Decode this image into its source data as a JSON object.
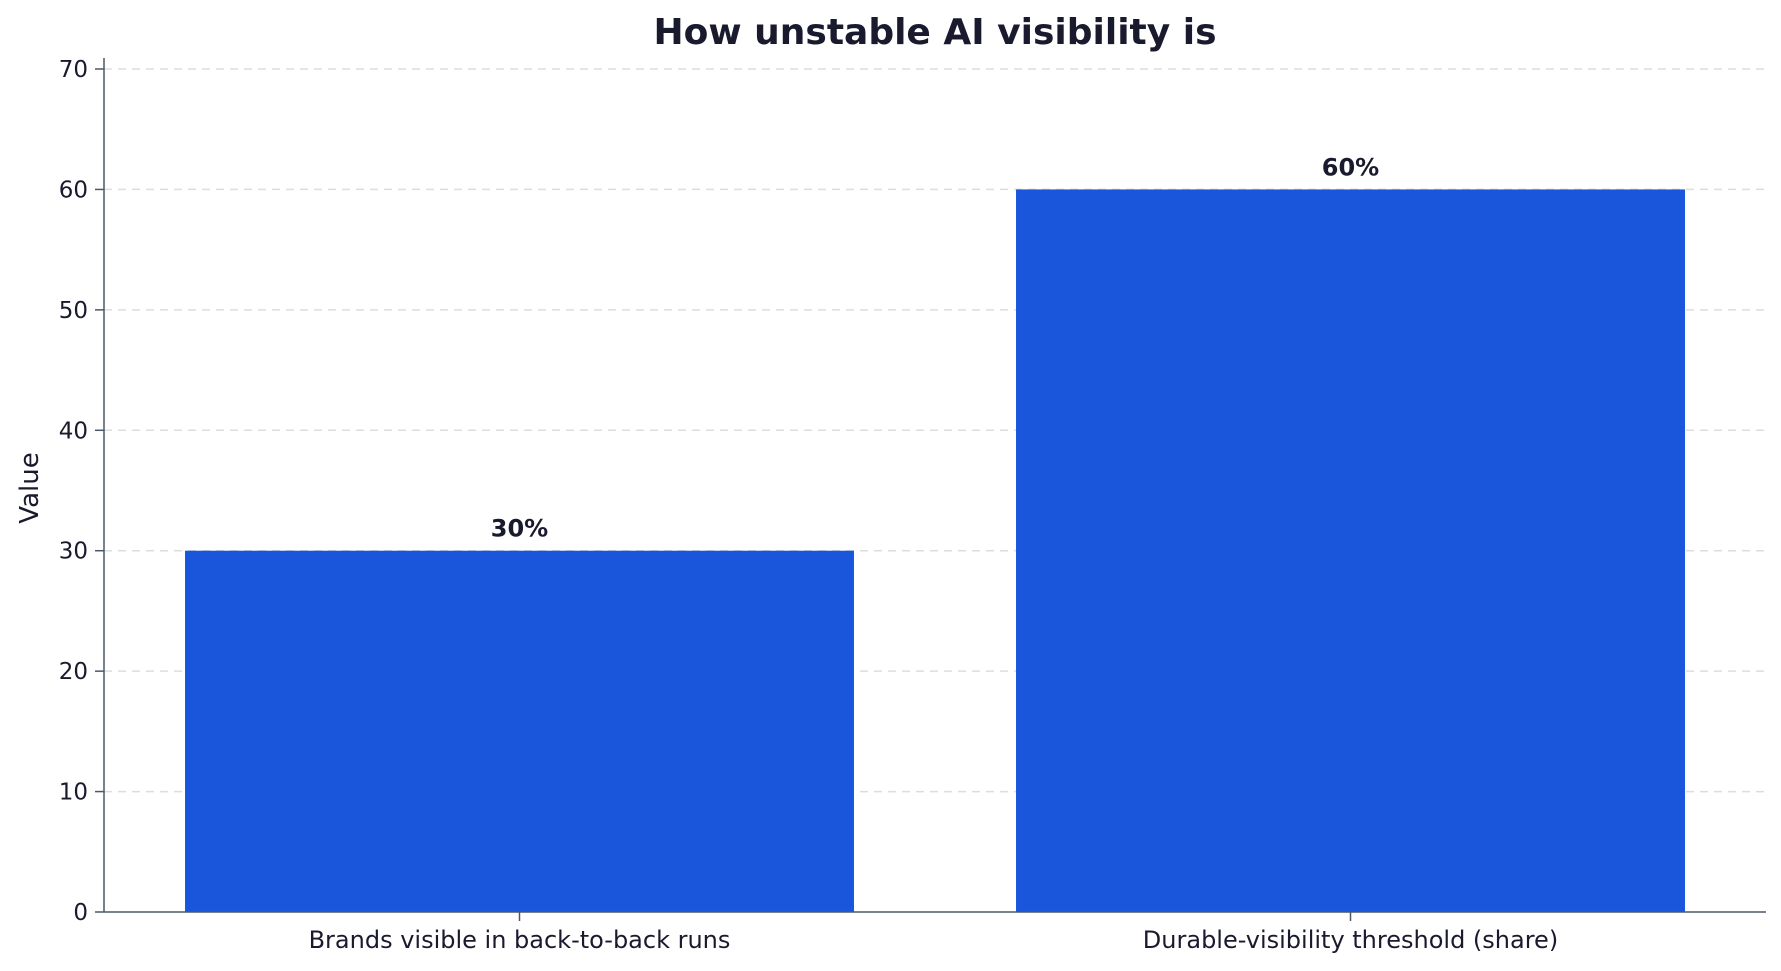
{
  "chart_data": {
    "type": "bar",
    "title": "How unstable AI visibility is",
    "xlabel": "",
    "ylabel": "Value",
    "categories": [
      "Brands visible in back-to-back runs",
      "Durable-visibility threshold (share)"
    ],
    "values": [
      30,
      60
    ],
    "data_labels": [
      "30%",
      "60%"
    ],
    "ylim": [
      0,
      70
    ],
    "yticks": [
      0,
      10,
      20,
      30,
      40,
      50,
      60,
      70
    ],
    "grid": "horizontal-dashed",
    "bar_color": "#1a56db"
  }
}
